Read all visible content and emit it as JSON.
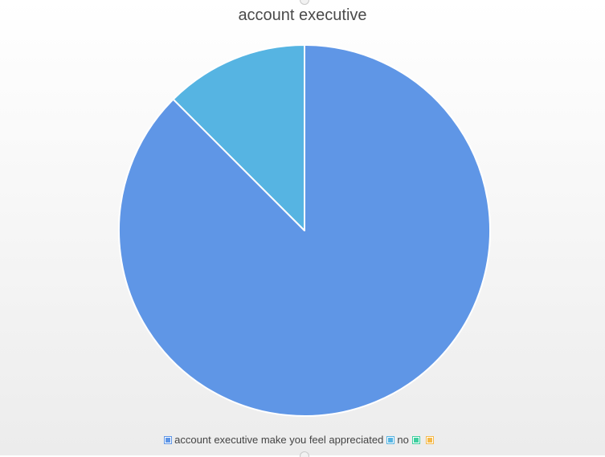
{
  "chart_data": {
    "type": "pie",
    "title": "account executive",
    "slices": [
      {
        "label": "account executive make you feel appreciated",
        "value": 87.5,
        "color": "#5f96e6"
      },
      {
        "label": "no",
        "value": 12.5,
        "color": "#56b4e2"
      },
      {
        "label": "",
        "value": 0,
        "color": "#3fcf9f"
      },
      {
        "label": "",
        "value": 0,
        "color": "#f5b94a"
      }
    ],
    "start_angle_deg": 0,
    "direction": "clockwise",
    "legend_position": "bottom"
  }
}
